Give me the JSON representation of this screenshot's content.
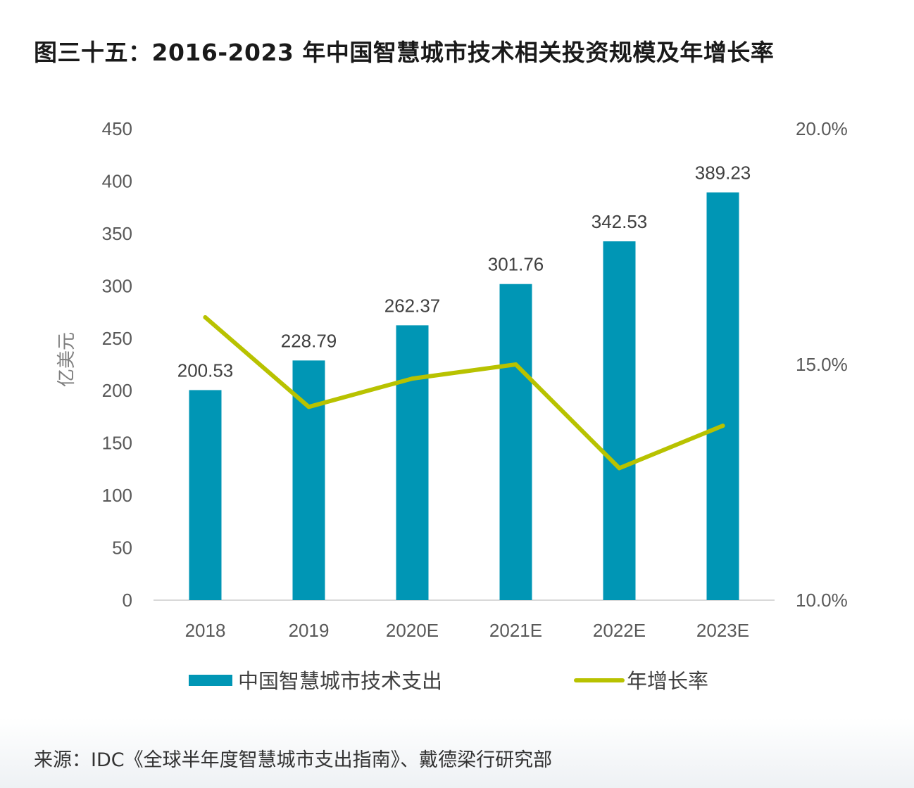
{
  "page": {
    "title": "图三十五：2016-2023 年中国智慧城市技术相关投资规模及年增长率",
    "source": "来源：IDC《全球半年度智慧城市支出指南》、戴德梁行研究部"
  },
  "colors": {
    "bar": "#0096b5",
    "line": "#b8c200",
    "axis_text": "#595959",
    "axis_line": "#d9d9d9"
  },
  "chart_data": {
    "type": "bar",
    "title": "",
    "xlabel": "",
    "ylabel": "亿美元",
    "categories": [
      "2018",
      "2019",
      "2020E",
      "2021E",
      "2022E",
      "2023E"
    ],
    "ylim": [
      0,
      450
    ],
    "yticks": [
      "0",
      "50",
      "100",
      "150",
      "200",
      "250",
      "300",
      "350",
      "400",
      "450"
    ],
    "y2lim": [
      10.0,
      20.0
    ],
    "y2ticks": [
      "10.0%",
      "15.0%",
      "20.0%"
    ],
    "grid": false,
    "legend_position": "bottom",
    "series": [
      {
        "name": "中国智慧城市技术支出",
        "type": "bar",
        "axis": "left",
        "values": [
          200.53,
          228.79,
          262.37,
          301.76,
          342.53,
          389.23
        ],
        "labels": [
          "200.53",
          "228.79",
          "262.37",
          "301.76",
          "342.53",
          "389.23"
        ]
      },
      {
        "name": "年增长率",
        "type": "line",
        "axis": "right",
        "values": [
          16.0,
          14.1,
          14.7,
          15.0,
          12.8,
          13.7
        ]
      }
    ]
  }
}
